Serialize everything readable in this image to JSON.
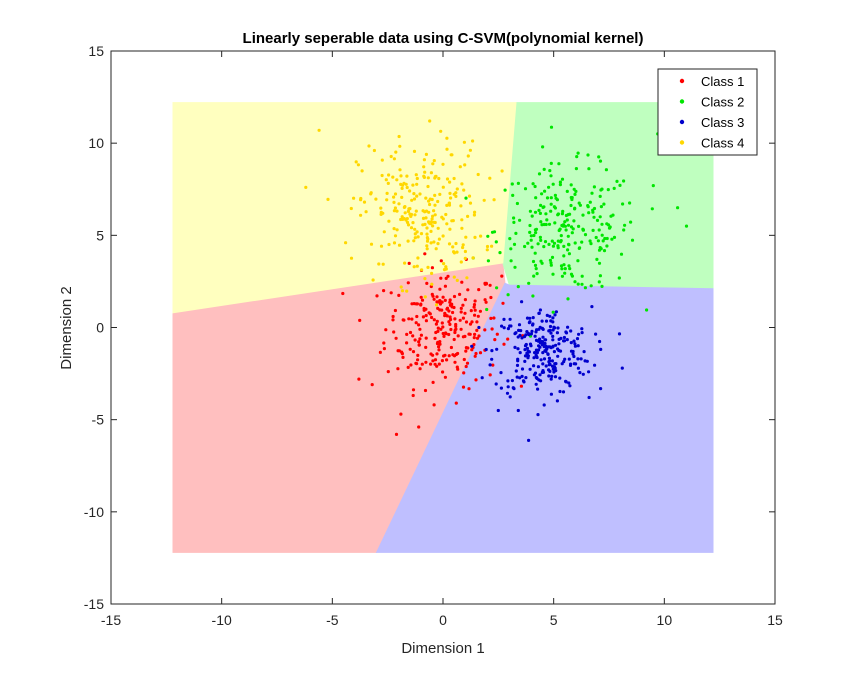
{
  "chart_data": {
    "type": "scatter",
    "title": "Linearly seperable data using C-SVM(polynomial kernel)",
    "xlabel": "Dimension 1",
    "ylabel": "Dimension 2",
    "xlim": [
      -15,
      15
    ],
    "ylim": [
      -15,
      15
    ],
    "xticks": [
      -15,
      -10,
      -5,
      0,
      5,
      10,
      15
    ],
    "yticks": [
      -15,
      -10,
      -5,
      0,
      5,
      10,
      15
    ],
    "grid": false,
    "legend_position": "top-right",
    "decision_regions": [
      {
        "class": "Class 1",
        "color": "#ffbfbf",
        "polygon": [
          [
            -12.2,
            0.8
          ],
          [
            2.7,
            3.5
          ],
          [
            2.8,
            2.4
          ],
          [
            -3.0,
            -12.2
          ],
          [
            -12.2,
            -12.2
          ]
        ]
      },
      {
        "class": "Class 2",
        "color": "#bfffbf",
        "polygon": [
          [
            3.3,
            12.2
          ],
          [
            12.2,
            12.2
          ],
          [
            12.2,
            2.1
          ],
          [
            3.0,
            2.3
          ],
          [
            2.7,
            3.5
          ]
        ]
      },
      {
        "class": "Class 3",
        "color": "#bfbfff",
        "polygon": [
          [
            2.8,
            2.4
          ],
          [
            3.0,
            2.3
          ],
          [
            12.2,
            2.1
          ],
          [
            12.2,
            -12.2
          ],
          [
            -3.0,
            -12.2
          ]
        ]
      },
      {
        "class": "Class 4",
        "color": "#ffffbf",
        "polygon": [
          [
            -12.2,
            12.2
          ],
          [
            3.3,
            12.2
          ],
          [
            2.7,
            3.5
          ],
          [
            -12.2,
            0.8
          ]
        ]
      }
    ],
    "series": [
      {
        "name": "Class 1",
        "color": "#ff0000",
        "center": [
          0.0,
          0.0
        ],
        "spread": [
          1.3,
          1.6
        ],
        "count": 250,
        "outliers": [
          [
            -2.1,
            -5.8
          ],
          [
            -1.1,
            -5.4
          ],
          [
            -3.8,
            -2.8
          ],
          [
            -3.2,
            -3.1
          ],
          [
            0.6,
            -4.1
          ],
          [
            -1.9,
            -4.7
          ]
        ]
      },
      {
        "name": "Class 2",
        "color": "#00e600",
        "center": [
          5.6,
          5.3
        ],
        "spread": [
          1.6,
          1.7
        ],
        "count": 250,
        "outliers": [
          [
            10.6,
            6.5
          ],
          [
            11.0,
            5.5
          ],
          [
            9.7,
            10.5
          ],
          [
            4.5,
            9.8
          ],
          [
            9.5,
            7.7
          ]
        ]
      },
      {
        "name": "Class 3",
        "color": "#0000cc",
        "center": [
          4.5,
          -1.3
        ],
        "spread": [
          1.1,
          1.2
        ],
        "count": 250,
        "outliers": [
          [
            8.1,
            -2.2
          ],
          [
            2.5,
            -4.5
          ],
          [
            3.4,
            -4.5
          ],
          [
            6.6,
            -3.8
          ]
        ]
      },
      {
        "name": "Class 4",
        "color": "#ffd700",
        "center": [
          -1.0,
          6.2
        ],
        "spread": [
          1.4,
          1.9
        ],
        "count": 250,
        "outliers": [
          [
            -5.6,
            10.7
          ],
          [
            -6.2,
            7.6
          ],
          [
            -4.4,
            4.6
          ],
          [
            -3.1,
            9.6
          ],
          [
            -0.6,
            11.2
          ]
        ]
      }
    ],
    "legend": [
      {
        "label": "Class 1",
        "color": "#ff0000"
      },
      {
        "label": "Class 2",
        "color": "#00e600"
      },
      {
        "label": "Class 3",
        "color": "#0000cc"
      },
      {
        "label": "Class 4",
        "color": "#ffd700"
      }
    ]
  }
}
